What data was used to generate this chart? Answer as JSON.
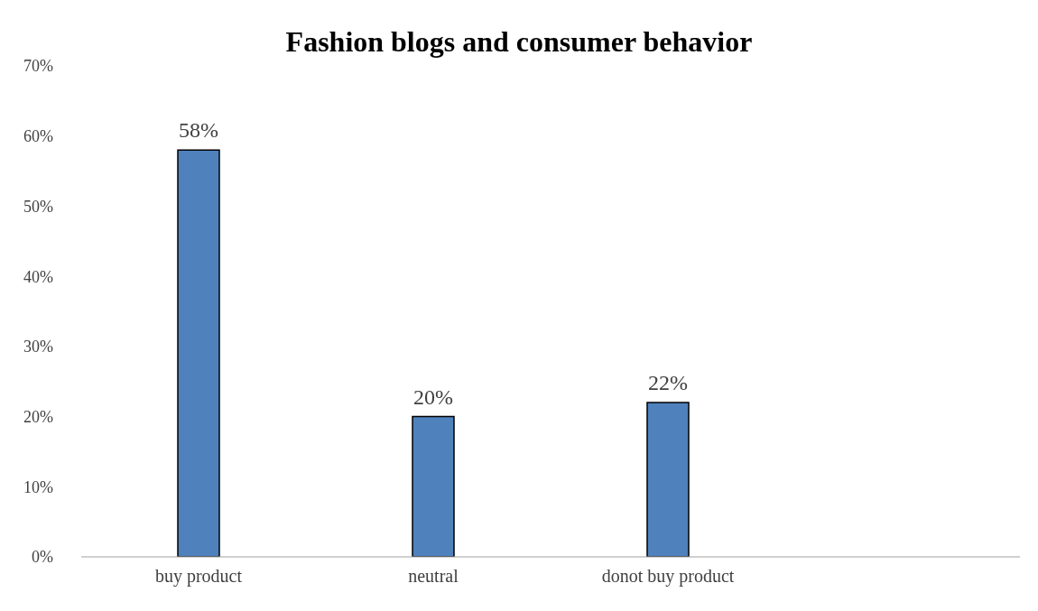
{
  "chart_data": {
    "type": "bar",
    "title": "Fashion blogs and consumer behavior",
    "categories": [
      "buy product",
      "neutral",
      "donot buy product",
      null
    ],
    "values": [
      58,
      20,
      22,
      null
    ],
    "color": "#4f81bd",
    "value_labels": [
      "58%",
      "20%",
      "22%",
      null
    ],
    "ylim": [
      0,
      70
    ],
    "yticks": [
      {
        "value": 0,
        "label": "0%"
      },
      {
        "value": 10,
        "label": "10%"
      },
      {
        "value": 20,
        "label": "20%"
      },
      {
        "value": 30,
        "label": "30%"
      },
      {
        "value": 40,
        "label": "40%"
      },
      {
        "value": 50,
        "label": "50%"
      },
      {
        "value": 60,
        "label": "60%"
      },
      {
        "value": 70,
        "label": "70%"
      }
    ]
  }
}
